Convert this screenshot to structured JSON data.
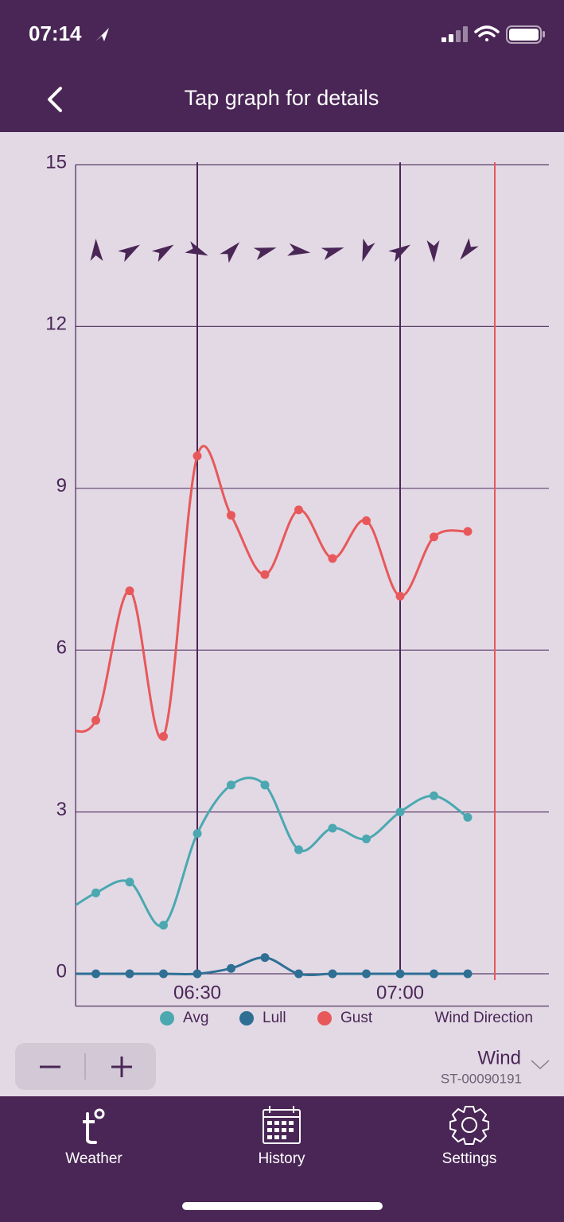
{
  "status_bar": {
    "time": "07:14"
  },
  "header": {
    "title": "Tap graph for details"
  },
  "chart_data": {
    "type": "line",
    "x": [
      "06:10",
      "06:15",
      "06:20",
      "06:25",
      "06:30",
      "06:35",
      "06:40",
      "06:45",
      "06:50",
      "06:55",
      "07:00",
      "07:05",
      "07:10"
    ],
    "xlim": [
      "06:12",
      "07:22"
    ],
    "xticks": [
      "06:30",
      "07:00"
    ],
    "ylim": [
      -0.6,
      15
    ],
    "yticks": [
      0,
      3,
      6,
      9,
      12,
      15
    ],
    "grid": true,
    "series": [
      {
        "name": "Avg",
        "color": "#4ba8b0",
        "values": [
          1.1,
          1.5,
          1.7,
          0.9,
          2.6,
          3.5,
          3.5,
          2.3,
          2.7,
          2.5,
          3.0,
          3.3,
          2.9
        ]
      },
      {
        "name": "Lull",
        "color": "#2f6f94",
        "values": [
          0,
          0,
          0,
          0,
          0,
          0.1,
          0.3,
          0,
          0,
          0,
          0,
          0,
          0
        ]
      },
      {
        "name": "Gust",
        "color": "#e8585a",
        "values": [
          4.6,
          4.7,
          7.1,
          4.4,
          9.6,
          8.5,
          7.4,
          8.6,
          7.7,
          8.4,
          7.0,
          8.1,
          8.2
        ]
      }
    ],
    "wind_direction": {
      "name": "Wind Direction",
      "color": "#4a2656",
      "values": [
        null,
        0,
        60,
        60,
        115,
        45,
        75,
        100,
        75,
        200,
        60,
        180,
        220
      ]
    }
  },
  "selector": {
    "label": "Wind",
    "device": "ST-00090191"
  },
  "tabs": [
    "Weather",
    "History",
    "Settings"
  ]
}
